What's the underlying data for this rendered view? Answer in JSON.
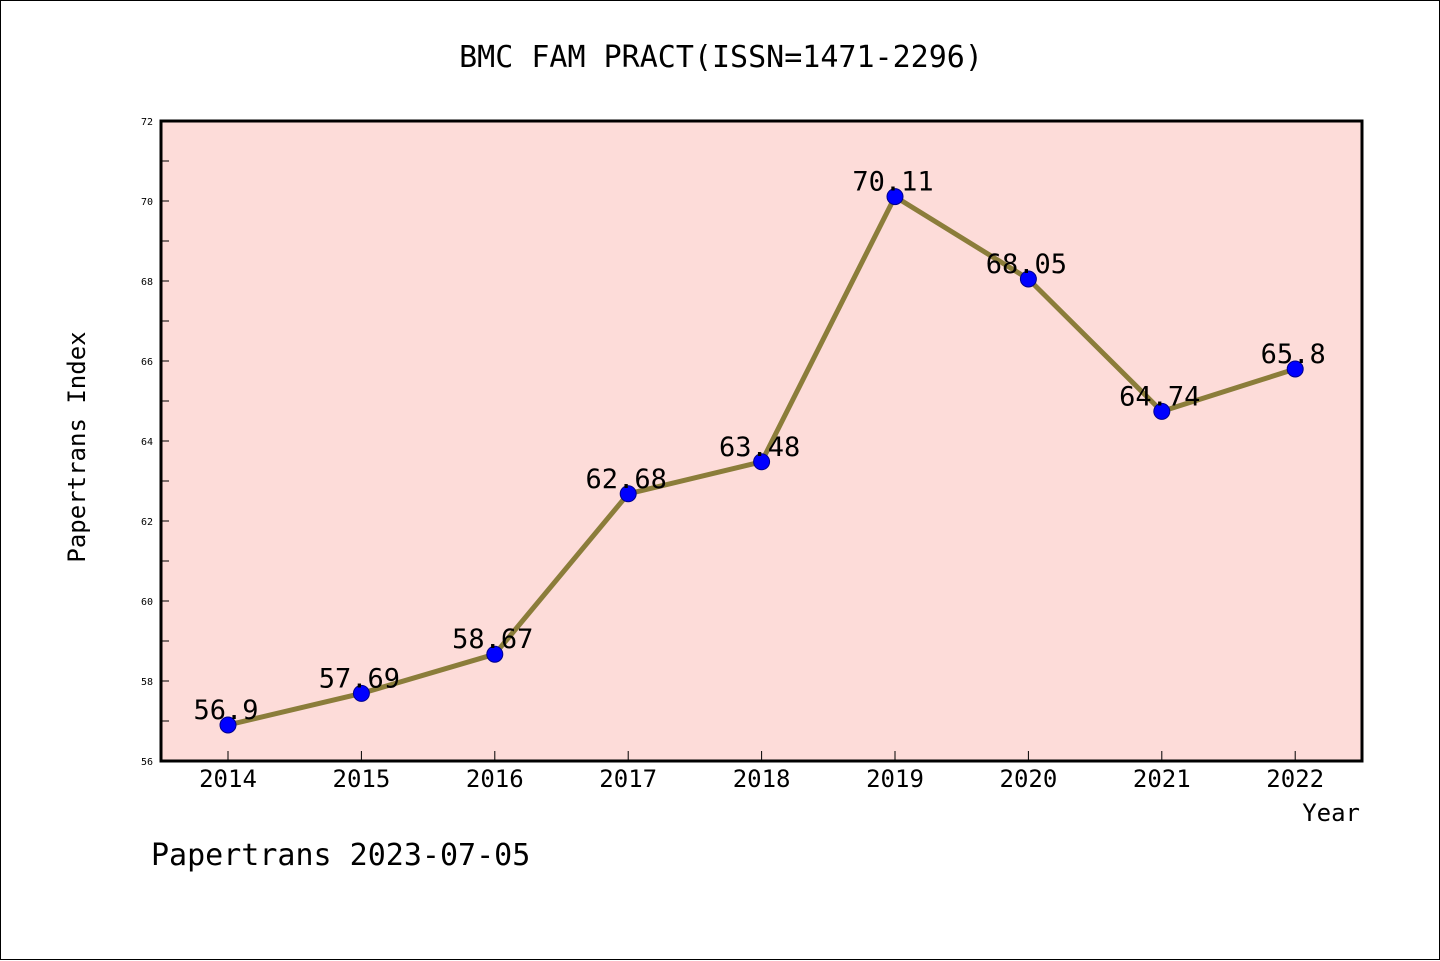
{
  "chart_data": {
    "type": "line",
    "title": "BMC FAM PRACT(ISSN=1471-2296)",
    "xlabel": "Year",
    "ylabel": "Papertrans Index",
    "categories": [
      "2014",
      "2015",
      "2016",
      "2017",
      "2018",
      "2019",
      "2020",
      "2021",
      "2022"
    ],
    "series": [
      {
        "values": [
          56.9,
          57.69,
          58.67,
          62.68,
          63.48,
          70.11,
          68.05,
          64.74,
          65.8
        ],
        "labels": [
          "56.9",
          "57.69",
          "58.67",
          "62.68",
          "63.48",
          "70.11",
          "68.05",
          "64.74",
          "65.8"
        ],
        "line_color": "#8b7d3a",
        "marker_color": "#0000ff"
      }
    ],
    "ylim": [
      56,
      72
    ],
    "y_ticks": [
      "56",
      "58",
      "60",
      "62",
      "64",
      "66",
      "68",
      "70",
      "72"
    ],
    "plot_background": "#fddcd9",
    "grid": false,
    "legend": "none"
  },
  "footer": "Papertrans 2023-07-05"
}
